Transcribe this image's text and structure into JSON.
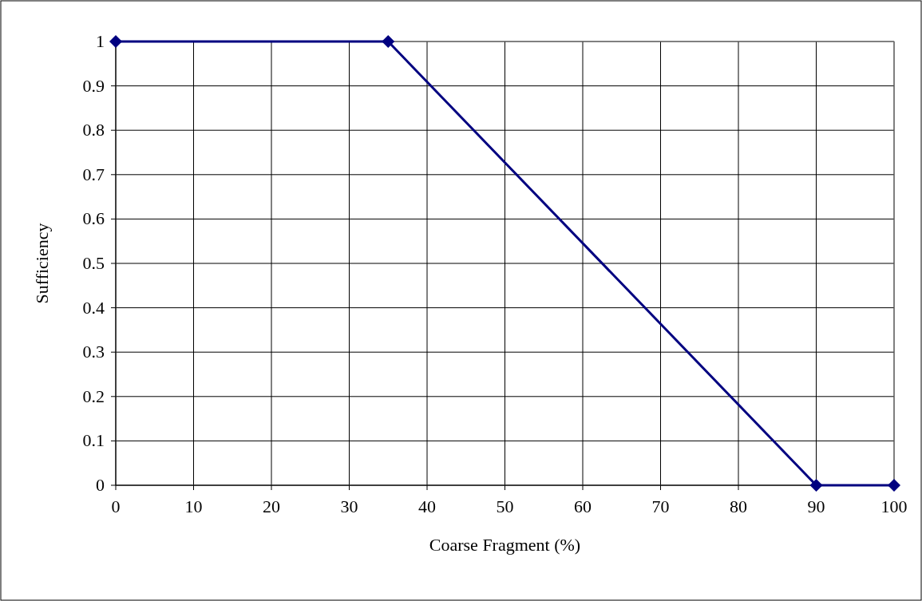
{
  "chart_data": {
    "type": "line",
    "xlabel": "Coarse Fragment (%)",
    "ylabel": "Sufficiency",
    "x": [
      0,
      35,
      90,
      100
    ],
    "series": [
      {
        "color": "#000080",
        "values": [
          1,
          1,
          0,
          0
        ]
      }
    ],
    "xlim": [
      0,
      100
    ],
    "xticks": [
      0,
      10,
      20,
      30,
      40,
      50,
      60,
      70,
      80,
      90,
      100
    ],
    "ylim": [
      0,
      1
    ],
    "yticks": [
      0,
      0.1,
      0.2,
      0.3,
      0.4,
      0.5,
      0.6,
      0.7,
      0.8,
      0.9,
      1
    ],
    "grid": true,
    "marker": "diamond",
    "line_style": "solid"
  }
}
